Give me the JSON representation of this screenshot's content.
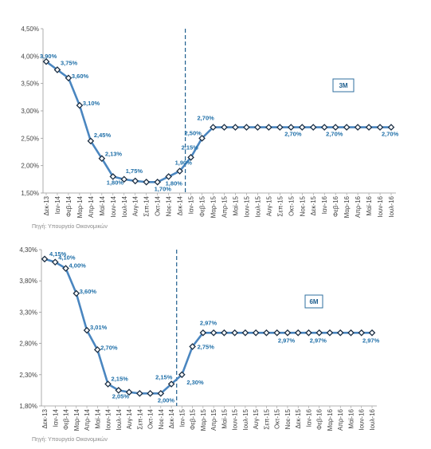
{
  "chart_data": [
    {
      "type": "line",
      "legend_label": "3M",
      "legend_position": "top-right",
      "categories": [
        "Δεκ-13",
        "Ιαν-14",
        "Φεβ-14",
        "Μαρ-14",
        "Απρ-14",
        "Μαϊ-14",
        "Ιουν-14",
        "Ιουλ-14",
        "Αυγ-14",
        "Σεπ-14",
        "Οκτ-14",
        "Νοε-14",
        "Δεκ-14",
        "Ιαν-15",
        "Φεβ-15",
        "Μαρ-15",
        "Απρ-15",
        "Μαϊ-15",
        "Ιουν-15",
        "Ιουλ-15",
        "Αυγ-15",
        "Σεπ-15",
        "Οκτ-15",
        "Νοε-15",
        "Δεκ-15",
        "Ιαν-16",
        "Φεβ-16",
        "Μαρ-16",
        "Απρ-16",
        "Μαϊ-16",
        "Ιουν-16",
        "Ιουλ-16"
      ],
      "values": [
        3.9,
        3.75,
        3.6,
        3.1,
        2.45,
        2.13,
        1.8,
        1.75,
        1.72,
        1.7,
        1.7,
        1.8,
        1.9,
        2.15,
        2.5,
        2.7,
        2.7,
        2.7,
        2.7,
        2.7,
        2.7,
        2.7,
        2.7,
        2.7,
        2.7,
        2.7,
        2.7,
        2.7,
        2.7,
        2.7,
        2.7,
        2.7
      ],
      "y_ticks": [
        "1,50%",
        "2,00%",
        "2,50%",
        "3,00%",
        "3,50%",
        "4,00%",
        "4,50%"
      ],
      "ylim": [
        1.5,
        4.5
      ],
      "divider_after_category": "Δεκ-14",
      "data_labels": [
        {
          "i": 0,
          "text": "3,90%"
        },
        {
          "i": 1,
          "text": "3,75%"
        },
        {
          "i": 2,
          "text": "3,60%"
        },
        {
          "i": 3,
          "text": "3,10%"
        },
        {
          "i": 4,
          "text": "2,45%"
        },
        {
          "i": 5,
          "text": "2,13%"
        },
        {
          "i": 6,
          "text": "1,80%"
        },
        {
          "i": 7,
          "text": "1,75%"
        },
        {
          "i": 10,
          "text": "1,70%"
        },
        {
          "i": 11,
          "text": "1,80%"
        },
        {
          "i": 12,
          "text": "1,90%"
        },
        {
          "i": 13,
          "text": "2,15%"
        },
        {
          "i": 14,
          "text": "2,50%"
        },
        {
          "i": 15,
          "text": "2,70%"
        },
        {
          "i": 23,
          "text": "2,70%"
        },
        {
          "i": 26,
          "text": "2,70%"
        },
        {
          "i": 31,
          "text": "2,70%"
        }
      ],
      "source": "Πηγή: Υπουργείο Οικονομικών",
      "line_color": "#4a86c0",
      "marker_color": "#1c2f44"
    },
    {
      "type": "line",
      "legend_label": "6M",
      "legend_position": "top-right",
      "categories": [
        "Δεκ-13",
        "Ιαν-14",
        "Φεβ-14",
        "Μαρ-14",
        "Απρ-14",
        "Μαϊ-14",
        "Ιουν-14",
        "Ιουλ-14",
        "Αυγ-14",
        "Σεπ-14",
        "Οκτ-14",
        "Νοε-14",
        "Δεκ-14",
        "Ιαν-15",
        "Φεβ-15",
        "Μαρ-15",
        "Απρ-15",
        "Μαϊ-15",
        "Ιουν-15",
        "Ιουλ-15",
        "Αυγ-15",
        "Σεπ-15",
        "Οκτ-15",
        "Νοε-15",
        "Δεκ-15",
        "Ιαν-16",
        "Φεβ-16",
        "Μαρ-16",
        "Απρ-16",
        "Μαϊ-16",
        "Ιουν-16",
        "Ιουλ-16"
      ],
      "values": [
        4.15,
        4.1,
        4.0,
        3.6,
        3.01,
        2.7,
        2.15,
        2.05,
        2.02,
        2.0,
        2.0,
        2.0,
        2.15,
        2.3,
        2.75,
        2.97,
        2.97,
        2.97,
        2.97,
        2.97,
        2.97,
        2.97,
        2.97,
        2.97,
        2.97,
        2.97,
        2.97,
        2.97,
        2.97,
        2.97,
        2.97,
        2.97
      ],
      "y_ticks": [
        "1,80%",
        "2,30%",
        "2,80%",
        "3,30%",
        "3,80%",
        "4,30%"
      ],
      "ylim": [
        1.8,
        4.3
      ],
      "divider_after_category": "Δεκ-14",
      "data_labels": [
        {
          "i": 0,
          "text": "4,15%"
        },
        {
          "i": 1,
          "text": "4,10%"
        },
        {
          "i": 2,
          "text": "4,00%"
        },
        {
          "i": 3,
          "text": "3,60%"
        },
        {
          "i": 4,
          "text": "3,01%"
        },
        {
          "i": 5,
          "text": "2,70%"
        },
        {
          "i": 6,
          "text": "2,15%"
        },
        {
          "i": 7,
          "text": "2,05%"
        },
        {
          "i": 11,
          "text": "2,00%"
        },
        {
          "i": 12,
          "text": "2,15%"
        },
        {
          "i": 13,
          "text": "2,30%"
        },
        {
          "i": 14,
          "text": "2,75%"
        },
        {
          "i": 15,
          "text": "2,97%"
        },
        {
          "i": 23,
          "text": "2,97%"
        },
        {
          "i": 26,
          "text": "2,97%"
        },
        {
          "i": 31,
          "text": "2,97%"
        }
      ],
      "source": "Πηγή: Υπουργείο Οικονομικών",
      "line_color": "#4a86c0",
      "marker_color": "#1c2f44"
    }
  ]
}
